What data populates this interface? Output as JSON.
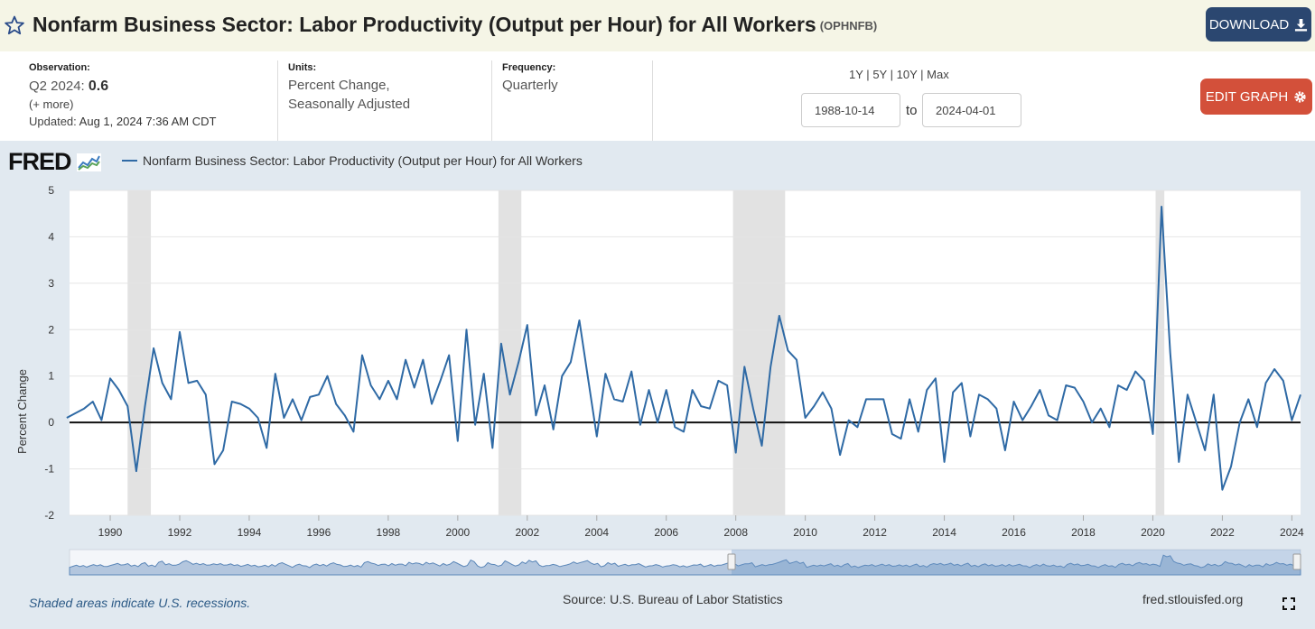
{
  "header": {
    "title": "Nonfarm Business Sector: Labor Productivity (Output per Hour) for All Workers",
    "series_id": "(OPHNFB)",
    "download_label": "DOWNLOAD",
    "star_icon": "star-outline-icon",
    "download_icon": "download-icon"
  },
  "meta": {
    "observation_label": "Observation:",
    "observation_period": "Q2 2024:",
    "observation_value": "0.6",
    "more": "(+ more)",
    "updated_label": "Updated:",
    "updated_value": "Aug 1, 2024 7:36 AM CDT",
    "units_label": "Units:",
    "units_line1": "Percent Change,",
    "units_line2": "Seasonally Adjusted",
    "frequency_label": "Frequency:",
    "frequency_value": "Quarterly"
  },
  "controls": {
    "range_1y": "1Y",
    "range_5y": "5Y",
    "range_10y": "10Y",
    "range_max": "Max",
    "sep": "|",
    "start_date": "1988-10-14",
    "to": "to",
    "end_date": "2024-04-01",
    "edit_label": "EDIT GRAPH",
    "edit_icon": "gear-icon"
  },
  "brand": {
    "logo": "FRED"
  },
  "legend": {
    "label": "Nonfarm Business Sector: Labor Productivity (Output per Hour) for All Workers",
    "color": "#2f6aa5"
  },
  "footer": {
    "note": "Shaded areas indicate U.S. recessions.",
    "source": "Source: U.S. Bureau of Labor Statistics",
    "url": "fred.stlouisfed.org",
    "expand_icon": "expand-icon"
  },
  "chart_data": {
    "type": "line",
    "ylabel": "Percent Change",
    "ylim": [
      -2,
      5
    ],
    "yticks": [
      5,
      4,
      3,
      2,
      1,
      0,
      -1,
      -2
    ],
    "xlim": [
      1988.83,
      2024.25
    ],
    "xticks": [
      1990,
      1992,
      1994,
      1996,
      1998,
      2000,
      2002,
      2004,
      2006,
      2008,
      2010,
      2012,
      2014,
      2016,
      2018,
      2020,
      2022,
      2024
    ],
    "grid": true,
    "zero_line": true,
    "line_color": "#2f6aa5",
    "recessions": [
      [
        1990.5,
        1991.17
      ],
      [
        2001.17,
        2001.83
      ],
      [
        2007.92,
        2009.42
      ],
      [
        2020.08,
        2020.33
      ]
    ],
    "series": [
      {
        "start": 1988.75,
        "step": 0.25,
        "values": [
          0.1,
          0.2,
          0.3,
          0.45,
          0.05,
          0.95,
          0.7,
          0.35,
          -1.05,
          0.35,
          1.6,
          0.85,
          0.5,
          1.95,
          0.85,
          0.9,
          0.6,
          -0.9,
          -0.6,
          0.45,
          0.4,
          0.3,
          0.1,
          -0.55,
          1.05,
          0.1,
          0.5,
          0.05,
          0.55,
          0.6,
          1.0,
          0.4,
          0.15,
          -0.2,
          1.45,
          0.8,
          0.5,
          0.9,
          0.5,
          1.35,
          0.75,
          1.35,
          0.4,
          0.9,
          1.45,
          -0.4,
          2.0,
          -0.05,
          1.05,
          -0.55,
          1.7,
          0.6,
          1.3,
          2.1,
          0.15,
          0.8,
          -0.15,
          1.0,
          1.3,
          2.2,
          0.95,
          -0.3,
          1.05,
          0.5,
          0.45,
          1.1,
          -0.05,
          0.7,
          0.0,
          0.7,
          -0.1,
          -0.2,
          0.7,
          0.35,
          0.3,
          0.9,
          0.8,
          -0.65,
          1.2,
          0.3,
          -0.5,
          1.2,
          2.3,
          1.55,
          1.35,
          0.1,
          0.35,
          0.65,
          0.3,
          -0.7,
          0.05,
          -0.1,
          0.5,
          0.5,
          0.5,
          -0.25,
          -0.35,
          0.5,
          -0.2,
          0.7,
          0.95,
          -0.85,
          0.65,
          0.85,
          -0.3,
          0.6,
          0.5,
          0.3,
          -0.6,
          0.45,
          0.05,
          0.35,
          0.7,
          0.15,
          0.05,
          0.8,
          0.75,
          0.45,
          0.0,
          0.3,
          -0.1,
          0.8,
          0.7,
          1.1,
          0.9,
          -0.25,
          4.65,
          1.5,
          -0.85,
          0.6,
          0.0,
          -0.6,
          0.6,
          -1.45,
          -0.95,
          0.0,
          0.5,
          -0.1,
          0.85,
          1.15,
          0.9,
          0.05,
          0.6
        ]
      }
    ]
  }
}
